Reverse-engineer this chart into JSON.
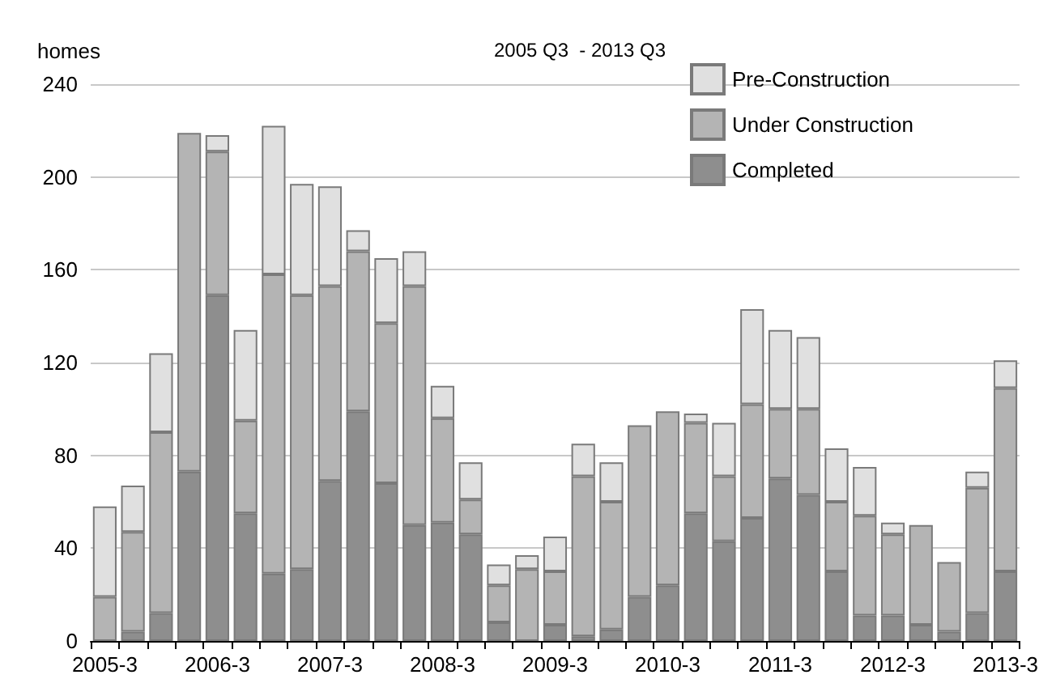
{
  "chart_data": {
    "type": "bar",
    "subtitle": "2005 Q3  - 2013 Q3",
    "ylabel": "homes",
    "categories": [
      "2005-3",
      null,
      null,
      null,
      "2006-3",
      null,
      null,
      null,
      "2007-3",
      null,
      null,
      null,
      "2008-3",
      null,
      null,
      null,
      "2009-3",
      null,
      null,
      null,
      "2010-3",
      null,
      null,
      null,
      "2011-3",
      null,
      null,
      null,
      "2012-3",
      null,
      null,
      null,
      "2013-3"
    ],
    "stacked": true,
    "series": [
      {
        "name": "Completed",
        "color": "#8e8e8e",
        "values": [
          0,
          4,
          12,
          73,
          149,
          55,
          29,
          31,
          69,
          99,
          68,
          50,
          51,
          46,
          8,
          0,
          7,
          2,
          5,
          19,
          24,
          55,
          43,
          53,
          70,
          63,
          30,
          11,
          11,
          7,
          4,
          12,
          30
        ]
      },
      {
        "name": "Under Construction",
        "color": "#b4b4b4",
        "values": [
          19,
          43,
          78,
          146,
          62,
          40,
          129,
          118,
          84,
          69,
          69,
          103,
          45,
          15,
          16,
          31,
          23,
          69,
          55,
          74,
          75,
          39,
          28,
          49,
          30,
          37,
          30,
          43,
          35,
          43,
          30,
          54,
          79
        ]
      },
      {
        "name": "Pre-Construction",
        "color": "#e0e0e0",
        "values": [
          39,
          20,
          34,
          0,
          7,
          39,
          64,
          48,
          43,
          9,
          28,
          15,
          14,
          16,
          9,
          6,
          15,
          14,
          17,
          0,
          0,
          4,
          23,
          41,
          34,
          31,
          23,
          21,
          5,
          0,
          0,
          7,
          12
        ]
      }
    ],
    "ylim": [
      0,
      240
    ],
    "yticks": [
      0,
      40,
      80,
      120,
      160,
      200,
      240
    ],
    "grid": "y",
    "legend": "top right"
  }
}
